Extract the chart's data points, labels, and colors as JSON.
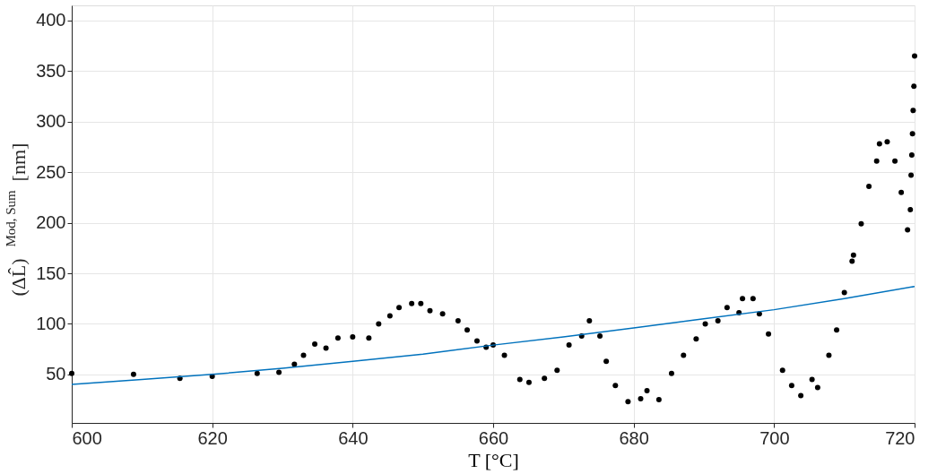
{
  "chart_data": {
    "type": "scatter",
    "xlabel": "T [°C]",
    "ylabel": "(ΔL̂)$^{Mod, Sum}$ [nm]",
    "xlim": [
      600,
      720
    ],
    "ylim": [
      2,
      415
    ],
    "xticks": [
      600,
      620,
      640,
      660,
      680,
      700,
      720
    ],
    "yticks": [
      50,
      100,
      150,
      200,
      250,
      300,
      350,
      400
    ],
    "grid": true,
    "marker": "circle",
    "series": [
      {
        "color": "#000000",
        "x": [
          600,
          608.8,
          615.4,
          620,
          626.4,
          629.5,
          631.7,
          633,
          634.6,
          636.2,
          637.9,
          640,
          642.3,
          643.7,
          645.3,
          646.6,
          648.4,
          649.7,
          651,
          652.8,
          655,
          656.3,
          657.7,
          659,
          660,
          661.6,
          663.8,
          665.1,
          667.3,
          669.1,
          670.8,
          672.6,
          673.7,
          675.2,
          676.1,
          677.4,
          679.2,
          681,
          681.9,
          683.6,
          685.4,
          687.1,
          688.9,
          690.2,
          692,
          693.3,
          695,
          695.5,
          697,
          697.9,
          699.2,
          701.2,
          702.5,
          703.8,
          705.4,
          706.2,
          707.8,
          708.9,
          710,
          711.1,
          711.3,
          712.4,
          713.5,
          714.6,
          715,
          716.1,
          717.2,
          718.1,
          719,
          719.4,
          719.5,
          719.6,
          719.7,
          719.8,
          719.9,
          720
        ],
        "values": [
          51,
          50,
          46,
          48,
          51,
          52,
          60,
          69,
          80,
          76,
          86,
          87,
          86,
          100,
          108,
          116,
          120,
          120,
          113,
          110,
          103,
          94,
          83,
          77,
          79,
          69,
          45,
          42,
          46,
          54,
          79,
          88,
          103,
          88,
          63,
          39,
          23,
          26,
          34,
          25,
          51,
          69,
          85,
          100,
          103,
          116,
          111,
          125,
          125,
          110,
          90,
          54,
          39,
          29,
          45,
          37,
          69,
          94,
          131,
          162,
          168,
          199,
          236,
          261,
          278,
          280,
          261,
          230,
          193,
          213,
          247,
          267,
          288,
          311,
          335,
          365
        ]
      },
      {
        "type": "line",
        "color": "#0072bd",
        "marker": "none",
        "x": [
          600,
          610,
          620,
          630,
          640,
          650,
          660,
          670,
          680,
          690,
          700,
          710,
          720
        ],
        "values": [
          40,
          45,
          50,
          56,
          63,
          70,
          79,
          87,
          96,
          105,
          114,
          125,
          137
        ]
      }
    ]
  }
}
